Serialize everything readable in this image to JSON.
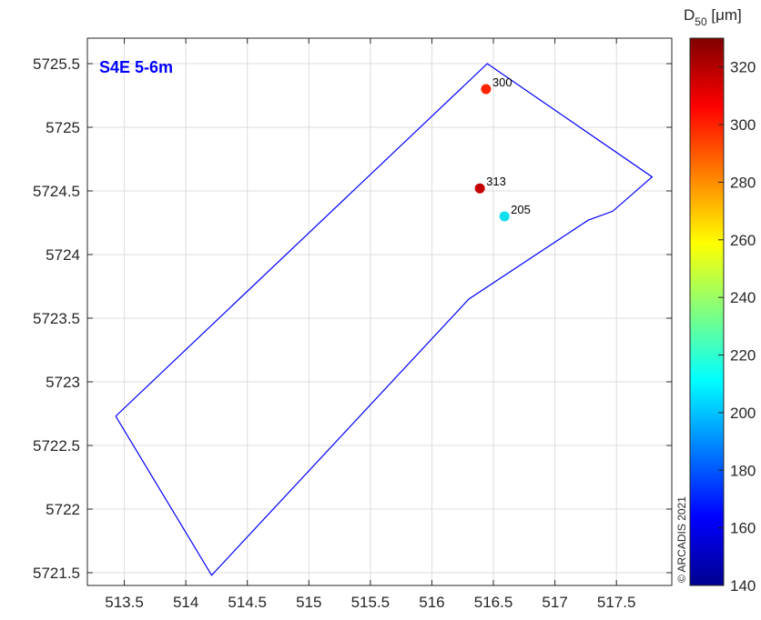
{
  "chart_data": {
    "type": "scatter",
    "title": "S4E 5-6m",
    "title_color": "#0000ff",
    "xlim": [
      513.2,
      517.95
    ],
    "ylim": [
      5721.4,
      5725.7
    ],
    "x_ticks": [
      513.5,
      514,
      514.5,
      515,
      515.5,
      516,
      516.5,
      517,
      517.5
    ],
    "x_tick_labels": [
      "513.5",
      "514",
      "514.5",
      "515",
      "515.5",
      "516",
      "516.5",
      "517",
      "517.5"
    ],
    "y_ticks": [
      5721.5,
      5722,
      5722.5,
      5723,
      5723.5,
      5724,
      5724.5,
      5725,
      5725.5
    ],
    "y_tick_labels": [
      "5721.5",
      "5722",
      "5722.5",
      "5723",
      "5723.5",
      "5724",
      "5724.5",
      "5725",
      "5725.5"
    ],
    "grid": true,
    "polygon": {
      "color": "#0000ff",
      "x": [
        513.43,
        516.45,
        517.79,
        517.47,
        517.27,
        516.3,
        514.21,
        513.43
      ],
      "y": [
        5722.73,
        5725.5,
        5724.61,
        5724.34,
        5724.27,
        5723.65,
        5721.48,
        5722.73
      ]
    },
    "points": [
      {
        "x": 516.44,
        "y": 5725.3,
        "value": 300,
        "label": "300",
        "color": "#ff2200"
      },
      {
        "x": 516.39,
        "y": 5724.52,
        "value": 313,
        "label": "313",
        "color": "#c40000"
      },
      {
        "x": 516.59,
        "y": 5724.3,
        "value": 205,
        "label": "205",
        "color": "#11dfee"
      }
    ],
    "colorbar": {
      "label": "D",
      "label_subscript": "50",
      "label_unit": " [μm]",
      "min": 140,
      "max": 330,
      "ticks": [
        140,
        160,
        180,
        200,
        220,
        240,
        260,
        280,
        300,
        320
      ],
      "tick_labels": [
        "140",
        "160",
        "180",
        "200",
        "220",
        "240",
        "260",
        "280",
        "300",
        "320"
      ],
      "colormap": "jet"
    },
    "copyright": "© ARCADIS 2021"
  }
}
